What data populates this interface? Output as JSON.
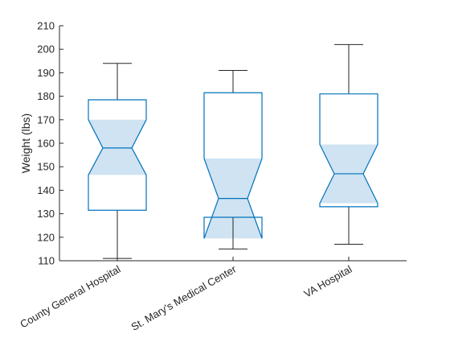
{
  "chart_data": {
    "type": "boxplot",
    "ylabel": "Weight (lbs)",
    "xlabel": "",
    "ylim": [
      110,
      210
    ],
    "yticks": [
      110,
      120,
      130,
      140,
      150,
      160,
      170,
      180,
      190,
      200,
      210
    ],
    "notched": true,
    "grid": false,
    "colors": {
      "box": "#0072BD",
      "notch_fill": "#CFE3F2",
      "whisker": "#262626"
    },
    "categories": [
      "County General Hospital",
      "St. Mary's Medical Center",
      "VA Hospital"
    ],
    "boxes": [
      {
        "category": "County General Hospital",
        "whisker_low": 111,
        "q1": 131.5,
        "notch_low": 146.5,
        "median": 158,
        "notch_high": 170,
        "q3": 178.5,
        "whisker_high": 194
      },
      {
        "category": "St. Mary's Medical Center",
        "whisker_low": 115,
        "q1": 128.5,
        "notch_low": 119.5,
        "median": 136.5,
        "notch_high": 153.5,
        "q3": 181.5,
        "whisker_high": 191
      },
      {
        "category": "VA Hospital",
        "whisker_low": 117,
        "q1": 133,
        "notch_low": 134.5,
        "median": 147,
        "notch_high": 159.5,
        "q3": 181,
        "whisker_high": 202
      }
    ]
  }
}
